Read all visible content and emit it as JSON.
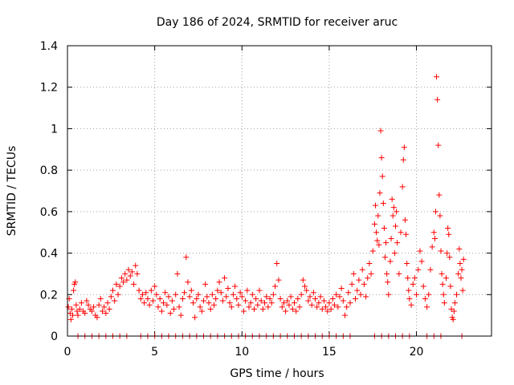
{
  "chart_data": {
    "type": "scatter",
    "title": "Day 186 of 2024, SRMTID for receiver aruc",
    "xlabel": "GPS time / hours",
    "ylabel": "SRMTID / TECUs",
    "xlim": [
      0,
      24.3
    ],
    "ylim": [
      0,
      1.4
    ],
    "xticks": [
      0,
      5,
      10,
      15,
      20
    ],
    "yticks": [
      0,
      0.2,
      0.4,
      0.6,
      0.8,
      1,
      1.2,
      1.4
    ],
    "xtick_labels": [
      "0",
      "5",
      "10",
      "15",
      "20"
    ],
    "ytick_labels": [
      "0",
      "0.2",
      "0.4",
      "0.6",
      "0.8",
      "1",
      "1.2",
      "1.4"
    ],
    "grid": true,
    "marker": "+",
    "color": "#ff0000",
    "series": [
      {
        "name": "SRMTID",
        "points": [
          [
            0.05,
            0.14
          ],
          [
            0.1,
            0.18
          ],
          [
            0.15,
            0.11
          ],
          [
            0.2,
            0.08
          ],
          [
            0.25,
            0.13
          ],
          [
            0.3,
            0.1
          ],
          [
            0.35,
            0.22
          ],
          [
            0.4,
            0.25
          ],
          [
            0.45,
            0.26
          ],
          [
            0.5,
            0.15
          ],
          [
            0.55,
            0.12
          ],
          [
            0.6,
            0.1
          ],
          [
            0.7,
            0.13
          ],
          [
            0.8,
            0.16
          ],
          [
            0.9,
            0.12
          ],
          [
            1.0,
            0.11
          ],
          [
            1.1,
            0.17
          ],
          [
            1.2,
            0.15
          ],
          [
            1.3,
            0.13
          ],
          [
            1.4,
            0.12
          ],
          [
            1.5,
            0.14
          ],
          [
            1.6,
            0.1
          ],
          [
            1.7,
            0.09
          ],
          [
            1.8,
            0.15
          ],
          [
            1.9,
            0.18
          ],
          [
            2.0,
            0.12
          ],
          [
            2.1,
            0.14
          ],
          [
            2.2,
            0.11
          ],
          [
            2.3,
            0.16
          ],
          [
            2.4,
            0.13
          ],
          [
            2.5,
            0.19
          ],
          [
            2.6,
            0.22
          ],
          [
            2.7,
            0.17
          ],
          [
            2.8,
            0.25
          ],
          [
            2.9,
            0.2
          ],
          [
            3.0,
            0.24
          ],
          [
            3.1,
            0.28
          ],
          [
            3.2,
            0.26
          ],
          [
            3.3,
            0.3
          ],
          [
            3.4,
            0.27
          ],
          [
            3.5,
            0.32
          ],
          [
            3.6,
            0.29
          ],
          [
            3.7,
            0.31
          ],
          [
            3.8,
            0.25
          ],
          [
            3.9,
            0.34
          ],
          [
            4.0,
            0.3
          ],
          [
            4.1,
            0.22
          ],
          [
            4.2,
            0.18
          ],
          [
            4.3,
            0.2
          ],
          [
            4.4,
            0.16
          ],
          [
            4.5,
            0.21
          ],
          [
            4.6,
            0.18
          ],
          [
            4.7,
            0.15
          ],
          [
            4.8,
            0.22
          ],
          [
            4.9,
            0.17
          ],
          [
            5.0,
            0.24
          ],
          [
            5.1,
            0.2
          ],
          [
            5.2,
            0.14
          ],
          [
            5.3,
            0.18
          ],
          [
            5.4,
            0.12
          ],
          [
            5.5,
            0.16
          ],
          [
            5.6,
            0.21
          ],
          [
            5.7,
            0.15
          ],
          [
            5.8,
            0.19
          ],
          [
            5.9,
            0.11
          ],
          [
            6.0,
            0.17
          ],
          [
            6.1,
            0.13
          ],
          [
            6.2,
            0.2
          ],
          [
            6.3,
            0.3
          ],
          [
            6.4,
            0.14
          ],
          [
            6.5,
            0.1
          ],
          [
            6.6,
            0.18
          ],
          [
            6.7,
            0.21
          ],
          [
            6.8,
            0.38
          ],
          [
            6.9,
            0.26
          ],
          [
            7.0,
            0.19
          ],
          [
            7.1,
            0.22
          ],
          [
            7.2,
            0.16
          ],
          [
            7.3,
            0.09
          ],
          [
            7.4,
            0.18
          ],
          [
            7.5,
            0.2
          ],
          [
            7.6,
            0.14
          ],
          [
            7.7,
            0.12
          ],
          [
            7.8,
            0.17
          ],
          [
            7.9,
            0.25
          ],
          [
            8.0,
            0.19
          ],
          [
            8.1,
            0.16
          ],
          [
            8.2,
            0.13
          ],
          [
            8.3,
            0.2
          ],
          [
            8.4,
            0.15
          ],
          [
            8.5,
            0.18
          ],
          [
            8.6,
            0.22
          ],
          [
            8.7,
            0.26
          ],
          [
            8.8,
            0.21
          ],
          [
            8.9,
            0.17
          ],
          [
            9.0,
            0.28
          ],
          [
            9.1,
            0.19
          ],
          [
            9.2,
            0.23
          ],
          [
            9.3,
            0.16
          ],
          [
            9.4,
            0.14
          ],
          [
            9.5,
            0.2
          ],
          [
            9.6,
            0.24
          ],
          [
            9.7,
            0.18
          ],
          [
            9.8,
            0.15
          ],
          [
            9.9,
            0.21
          ],
          [
            10.0,
            0.19
          ],
          [
            10.1,
            0.12
          ],
          [
            10.2,
            0.17
          ],
          [
            10.3,
            0.22
          ],
          [
            10.4,
            0.14
          ],
          [
            10.5,
            0.16
          ],
          [
            10.6,
            0.2
          ],
          [
            10.7,
            0.13
          ],
          [
            10.8,
            0.18
          ],
          [
            10.9,
            0.15
          ],
          [
            11.0,
            0.22
          ],
          [
            11.1,
            0.17
          ],
          [
            11.2,
            0.13
          ],
          [
            11.3,
            0.16
          ],
          [
            11.4,
            0.19
          ],
          [
            11.5,
            0.14
          ],
          [
            11.6,
            0.18
          ],
          [
            11.7,
            0.16
          ],
          [
            11.8,
            0.2
          ],
          [
            11.9,
            0.24
          ],
          [
            12.0,
            0.35
          ],
          [
            12.1,
            0.27
          ],
          [
            12.2,
            0.18
          ],
          [
            12.3,
            0.14
          ],
          [
            12.4,
            0.16
          ],
          [
            12.5,
            0.12
          ],
          [
            12.6,
            0.17
          ],
          [
            12.7,
            0.15
          ],
          [
            12.8,
            0.19
          ],
          [
            12.9,
            0.13
          ],
          [
            13.0,
            0.16
          ],
          [
            13.1,
            0.12
          ],
          [
            13.2,
            0.18
          ],
          [
            13.3,
            0.14
          ],
          [
            13.4,
            0.2
          ],
          [
            13.5,
            0.27
          ],
          [
            13.6,
            0.24
          ],
          [
            13.7,
            0.22
          ],
          [
            13.8,
            0.17
          ],
          [
            13.9,
            0.19
          ],
          [
            14.0,
            0.15
          ],
          [
            14.1,
            0.21
          ],
          [
            14.2,
            0.18
          ],
          [
            14.3,
            0.14
          ],
          [
            14.4,
            0.16
          ],
          [
            14.5,
            0.19
          ],
          [
            14.6,
            0.13
          ],
          [
            14.7,
            0.17
          ],
          [
            14.8,
            0.14
          ],
          [
            14.9,
            0.12
          ],
          [
            15.0,
            0.16
          ],
          [
            15.1,
            0.13
          ],
          [
            15.2,
            0.18
          ],
          [
            15.3,
            0.15
          ],
          [
            15.4,
            0.2
          ],
          [
            15.5,
            0.14
          ],
          [
            15.6,
            0.19
          ],
          [
            15.7,
            0.23
          ],
          [
            15.8,
            0.17
          ],
          [
            15.9,
            0.1
          ],
          [
            16.0,
            0.14
          ],
          [
            16.1,
            0.21
          ],
          [
            16.2,
            0.16
          ],
          [
            16.3,
            0.25
          ],
          [
            16.4,
            0.3
          ],
          [
            16.5,
            0.18
          ],
          [
            16.6,
            0.22
          ],
          [
            16.7,
            0.27
          ],
          [
            16.8,
            0.2
          ],
          [
            16.9,
            0.32
          ],
          [
            17.0,
            0.25
          ],
          [
            17.1,
            0.19
          ],
          [
            17.2,
            0.28
          ],
          [
            17.3,
            0.35
          ],
          [
            17.4,
            0.3
          ],
          [
            17.5,
            0.41
          ],
          [
            17.6,
            0.54
          ],
          [
            17.65,
            0.63
          ],
          [
            17.7,
            0.5
          ],
          [
            17.75,
            0.46
          ],
          [
            17.8,
            0.58
          ],
          [
            17.85,
            0.44
          ],
          [
            17.9,
            0.69
          ],
          [
            17.95,
            0.99
          ],
          [
            18.0,
            0.86
          ],
          [
            18.05,
            0.77
          ],
          [
            18.1,
            0.64
          ],
          [
            18.15,
            0.52
          ],
          [
            18.2,
            0.38
          ],
          [
            18.25,
            0.45
          ],
          [
            18.3,
            0.3
          ],
          [
            18.35,
            0.26
          ],
          [
            18.4,
            0.2
          ],
          [
            18.5,
            0.36
          ],
          [
            18.55,
            0.47
          ],
          [
            18.6,
            0.66
          ],
          [
            18.65,
            0.58
          ],
          [
            18.7,
            0.62
          ],
          [
            18.75,
            0.4
          ],
          [
            18.8,
            0.53
          ],
          [
            18.85,
            0.6
          ],
          [
            18.9,
            0.45
          ],
          [
            19.0,
            0.3
          ],
          [
            19.1,
            0.5
          ],
          [
            19.2,
            0.72
          ],
          [
            19.25,
            0.85
          ],
          [
            19.3,
            0.91
          ],
          [
            19.35,
            0.56
          ],
          [
            19.4,
            0.49
          ],
          [
            19.45,
            0.35
          ],
          [
            19.5,
            0.28
          ],
          [
            19.55,
            0.22
          ],
          [
            19.6,
            0.18
          ],
          [
            19.7,
            0.15
          ],
          [
            19.8,
            0.25
          ],
          [
            19.9,
            0.28
          ],
          [
            20.0,
            0.2
          ],
          [
            20.1,
            0.32
          ],
          [
            20.2,
            0.41
          ],
          [
            20.3,
            0.36
          ],
          [
            20.4,
            0.24
          ],
          [
            20.5,
            0.18
          ],
          [
            20.6,
            0.14
          ],
          [
            20.7,
            0.2
          ],
          [
            20.8,
            0.32
          ],
          [
            20.9,
            0.43
          ],
          [
            21.0,
            0.5
          ],
          [
            21.05,
            0.47
          ],
          [
            21.1,
            0.6
          ],
          [
            21.15,
            1.25
          ],
          [
            21.2,
            1.14
          ],
          [
            21.25,
            0.92
          ],
          [
            21.3,
            0.68
          ],
          [
            21.35,
            0.58
          ],
          [
            21.4,
            0.41
          ],
          [
            21.45,
            0.3
          ],
          [
            21.5,
            0.25
          ],
          [
            21.55,
            0.2
          ],
          [
            21.6,
            0.16
          ],
          [
            21.7,
            0.28
          ],
          [
            21.75,
            0.4
          ],
          [
            21.8,
            0.52
          ],
          [
            21.85,
            0.49
          ],
          [
            21.9,
            0.38
          ],
          [
            21.95,
            0.24
          ],
          [
            22.0,
            0.13
          ],
          [
            22.05,
            0.09
          ],
          [
            22.1,
            0.08
          ],
          [
            22.15,
            0.12
          ],
          [
            22.2,
            0.16
          ],
          [
            22.3,
            0.2
          ],
          [
            22.4,
            0.3
          ],
          [
            22.45,
            0.42
          ],
          [
            22.5,
            0.35
          ],
          [
            22.55,
            0.28
          ],
          [
            22.6,
            0.32
          ],
          [
            22.65,
            0.22
          ],
          [
            22.7,
            0.37
          ],
          [
            0.6,
            0.0
          ],
          [
            1.0,
            0.0
          ],
          [
            1.4,
            0.0
          ],
          [
            1.8,
            0.0
          ],
          [
            2.2,
            0.0
          ],
          [
            2.6,
            0.0
          ],
          [
            3.0,
            0.0
          ],
          [
            3.4,
            0.0
          ],
          [
            4.2,
            0.0
          ],
          [
            4.6,
            0.0
          ],
          [
            5.0,
            0.0
          ],
          [
            5.4,
            0.0
          ],
          [
            5.8,
            0.0
          ],
          [
            6.2,
            0.0
          ],
          [
            6.6,
            0.0
          ],
          [
            7.0,
            0.0
          ],
          [
            7.4,
            0.0
          ],
          [
            7.8,
            0.0
          ],
          [
            8.2,
            0.0
          ],
          [
            8.6,
            0.0
          ],
          [
            9.0,
            0.0
          ],
          [
            9.4,
            0.0
          ],
          [
            9.8,
            0.0
          ],
          [
            10.2,
            0.0
          ],
          [
            10.6,
            0.0
          ],
          [
            11.0,
            0.0
          ],
          [
            11.4,
            0.0
          ],
          [
            11.8,
            0.0
          ],
          [
            12.2,
            0.0
          ],
          [
            12.6,
            0.0
          ],
          [
            13.0,
            0.0
          ],
          [
            13.4,
            0.0
          ],
          [
            13.8,
            0.0
          ],
          [
            14.2,
            0.0
          ],
          [
            14.6,
            0.0
          ],
          [
            15.0,
            0.0
          ],
          [
            15.4,
            0.0
          ],
          [
            15.8,
            0.0
          ],
          [
            16.2,
            0.0
          ],
          [
            17.6,
            0.0
          ],
          [
            18.0,
            0.0
          ],
          [
            18.4,
            0.0
          ],
          [
            18.8,
            0.0
          ],
          [
            19.2,
            0.0
          ],
          [
            19.6,
            0.0
          ],
          [
            20.6,
            0.0
          ],
          [
            21.0,
            0.0
          ],
          [
            21.4,
            0.0
          ],
          [
            22.6,
            0.0
          ]
        ]
      }
    ]
  }
}
